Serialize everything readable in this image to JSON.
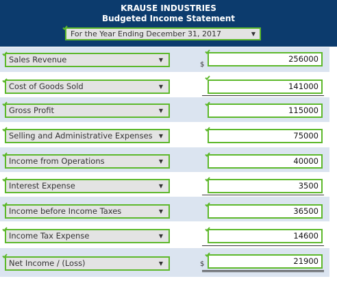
{
  "header": {
    "company": "KRAUSE INDUSTRIES",
    "title": "Budgeted Income Statement",
    "period": "For the Year Ending December 31, 2017"
  },
  "rows": [
    {
      "label": "Sales Revenue",
      "value": "256000",
      "currency": "$"
    },
    {
      "label": "Cost of Goods Sold",
      "value": "141000"
    },
    {
      "label": "Gross Profit",
      "value": "115000"
    },
    {
      "label": "Selling and Administrative Expenses",
      "value": "75000"
    },
    {
      "label": "Income from Operations",
      "value": "40000"
    },
    {
      "label": "Interest Expense",
      "value": "3500"
    },
    {
      "label": "Income before Income Taxes",
      "value": "36500"
    },
    {
      "label": "Income Tax Expense",
      "value": "14600"
    },
    {
      "label": "Net Income / (Loss)",
      "value": "21900",
      "currency": "$"
    }
  ],
  "icons": {
    "check": "check-icon",
    "dropdown": "chevron-down-icon"
  },
  "colors": {
    "header": "#0c3b6d",
    "valid_border": "#5cb82a",
    "row_alt": "#dbe4f0",
    "select_bg": "#e3e3e3"
  }
}
